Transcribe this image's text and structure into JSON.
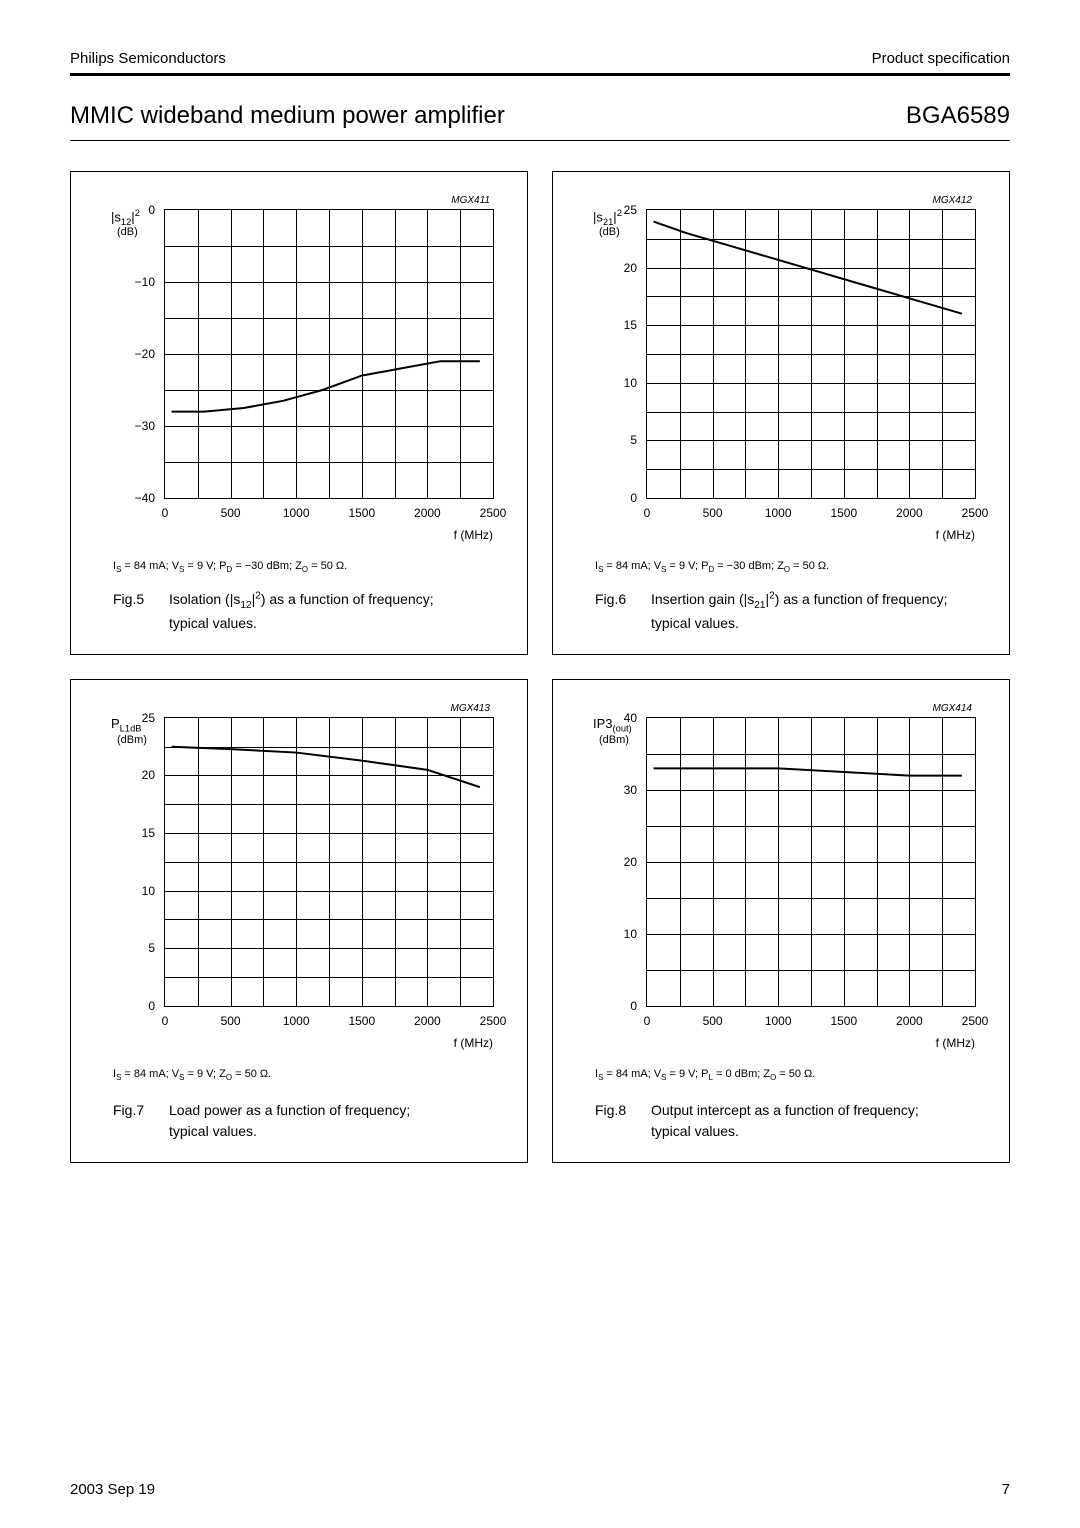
{
  "header": {
    "left": "Philips Semiconductors",
    "right": "Product specification"
  },
  "title": {
    "main": "MMIC wideband medium power amplifier",
    "part": "BGA6589"
  },
  "footer": {
    "date": "2003 Sep 19",
    "page": "7"
  },
  "global_style": {
    "grid_color": "#000000",
    "background_color": "#ffffff",
    "curve_color": "#000000",
    "curve_width": 2,
    "axis_fontsize": 12,
    "caption_fontsize": 14
  },
  "figures": [
    {
      "tag": "MGX411",
      "y_label_html": "|s<sub>12</sub>|<sup>2</sup>",
      "y_unit": "(dB)",
      "x_label": "f (MHz)",
      "xlim": [
        0,
        2500
      ],
      "xticks": [
        0,
        500,
        1000,
        1500,
        2000,
        2500
      ],
      "ylim": [
        -40,
        0
      ],
      "yticks": [
        -40,
        -30,
        -20,
        -10,
        0
      ],
      "y_minor_per_major": 1,
      "curve": [
        [
          50,
          -28
        ],
        [
          300,
          -28
        ],
        [
          600,
          -27.5
        ],
        [
          900,
          -26.5
        ],
        [
          1200,
          -25
        ],
        [
          1500,
          -23
        ],
        [
          1800,
          -22
        ],
        [
          2100,
          -21
        ],
        [
          2400,
          -21
        ]
      ],
      "conditions_html": "I<sub>S</sub> = 84 mA; V<sub>S</sub> = 9 V; P<sub>D</sub> = −30 dBm; Z<sub>O</sub> = 50 Ω.",
      "fig_num": "Fig.5",
      "caption_html": "Isolation (|s<sub>12</sub>|<sup>2</sup>) as a function of frequency; typical values."
    },
    {
      "tag": "MGX412",
      "y_label_html": "|s<sub>21</sub>|<sup>2</sup>",
      "y_unit": "(dB)",
      "x_label": "f (MHz)",
      "xlim": [
        0,
        2500
      ],
      "xticks": [
        0,
        500,
        1000,
        1500,
        2000,
        2500
      ],
      "ylim": [
        0,
        25
      ],
      "yticks": [
        0,
        5,
        10,
        15,
        20,
        25
      ],
      "y_minor_per_major": 1,
      "curve": [
        [
          50,
          24
        ],
        [
          300,
          23
        ],
        [
          600,
          22
        ],
        [
          900,
          21
        ],
        [
          1200,
          20
        ],
        [
          1500,
          19
        ],
        [
          1800,
          18
        ],
        [
          2100,
          17
        ],
        [
          2400,
          16
        ]
      ],
      "conditions_html": "I<sub>S</sub> = 84 mA; V<sub>S</sub> = 9 V; P<sub>D</sub> = −30 dBm; Z<sub>O</sub> = 50 Ω.",
      "fig_num": "Fig.6",
      "caption_html": "Insertion gain (|s<sub>21</sub>|<sup>2</sup>) as a function of frequency; typical values."
    },
    {
      "tag": "MGX413",
      "y_label_html": "P<sub>L1dB</sub>",
      "y_unit": "(dBm)",
      "x_label": "f (MHz)",
      "xlim": [
        0,
        2500
      ],
      "xticks": [
        0,
        500,
        1000,
        1500,
        2000,
        2500
      ],
      "ylim": [
        0,
        25
      ],
      "yticks": [
        0,
        5,
        10,
        15,
        20,
        25
      ],
      "y_minor_per_major": 1,
      "curve": [
        [
          50,
          22.5
        ],
        [
          500,
          22.3
        ],
        [
          1000,
          22
        ],
        [
          1500,
          21.3
        ],
        [
          2000,
          20.5
        ],
        [
          2400,
          19
        ]
      ],
      "conditions_html": "I<sub>S</sub> = 84 mA; V<sub>S</sub> = 9 V; Z<sub>O</sub> = 50 Ω.",
      "fig_num": "Fig.7",
      "caption_html": "Load power as a function of frequency; typical values."
    },
    {
      "tag": "MGX414",
      "y_label_html": "IP3<sub>(out)</sub>",
      "y_unit": "(dBm)",
      "x_label": "f (MHz)",
      "xlim": [
        0,
        2500
      ],
      "xticks": [
        0,
        500,
        1000,
        1500,
        2000,
        2500
      ],
      "ylim": [
        0,
        40
      ],
      "yticks": [
        0,
        10,
        20,
        30,
        40
      ],
      "y_minor_per_major": 1,
      "curve": [
        [
          50,
          33
        ],
        [
          500,
          33
        ],
        [
          1000,
          33
        ],
        [
          1500,
          32.5
        ],
        [
          2000,
          32
        ],
        [
          2400,
          32
        ]
      ],
      "conditions_html": "I<sub>S</sub> = 84 mA; V<sub>S</sub> = 9 V; P<sub>L</sub> = 0 dBm; Z<sub>O</sub> = 50 Ω.",
      "fig_num": "Fig.8",
      "caption_html": "Output intercept as a function of frequency; typical values."
    }
  ]
}
